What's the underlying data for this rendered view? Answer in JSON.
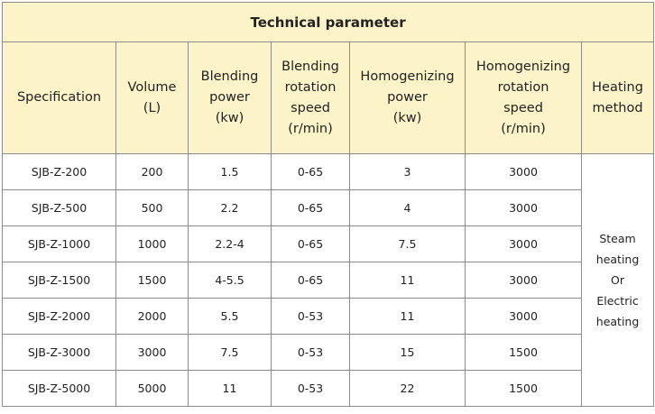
{
  "table": {
    "title": "Technical parameter",
    "headers": [
      "Specification",
      "Volume\n(L)",
      "Blending\npower\n(kw)",
      "Blending\nrotation\nspeed\n(r/min)",
      "Homogenizing\npower\n(kw)",
      "Homogenizing\nrotation\nspeed\n(r/min)",
      "Heating\nmethod"
    ],
    "rows": [
      [
        "SJB-Z-200",
        "200",
        "1.5",
        "0-65",
        "3",
        "3000"
      ],
      [
        "SJB-Z-500",
        "500",
        "2.2",
        "0-65",
        "4",
        "3000"
      ],
      [
        "SJB-Z-1000",
        "1000",
        "2.2-4",
        "0-65",
        "7.5",
        "3000"
      ],
      [
        "SJB-Z-1500",
        "1500",
        "4-5.5",
        "0-65",
        "11",
        "3000"
      ],
      [
        "SJB-Z-2000",
        "2000",
        "5.5",
        "0-53",
        "11",
        "3000"
      ],
      [
        "SJB-Z-3000",
        "3000",
        "7.5",
        "0-53",
        "15",
        "1500"
      ],
      [
        "SJB-Z-5000",
        "5000",
        "11",
        "0-53",
        "22",
        "1500"
      ]
    ],
    "heating_method": "Steam\nheating\nOr\nElectric\nheating"
  }
}
